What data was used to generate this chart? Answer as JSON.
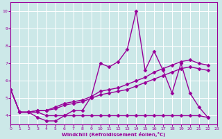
{
  "xlabel": "Windchill (Refroidissement éolien,°C)",
  "xlim": [
    0,
    23
  ],
  "ylim": [
    3.5,
    10.5
  ],
  "yticks": [
    4,
    5,
    6,
    7,
    8,
    9,
    10
  ],
  "xticks": [
    0,
    1,
    2,
    3,
    4,
    5,
    6,
    7,
    8,
    9,
    10,
    11,
    12,
    13,
    14,
    15,
    16,
    17,
    18,
    19,
    20,
    21,
    22,
    23
  ],
  "background_color": "#cce8e8",
  "grid_color": "#b0d0d0",
  "line_color": "#990099",
  "line_width": 1.0,
  "marker": "D",
  "marker_size": 2.5,
  "series_x": [
    0,
    1,
    2,
    3,
    4,
    5,
    6,
    7,
    8,
    9,
    10,
    11,
    12,
    13,
    14,
    15,
    16,
    17,
    18,
    19,
    20,
    21,
    22
  ],
  "series": [
    [
      5.5,
      4.2,
      4.2,
      3.9,
      3.7,
      3.7,
      4.0,
      4.3,
      4.3,
      5.1,
      7.0,
      6.8,
      7.1,
      7.8,
      10.0,
      6.6,
      7.7,
      6.6,
      5.3,
      7.0,
      5.3,
      4.5,
      3.9
    ],
    [
      5.5,
      4.2,
      4.2,
      4.2,
      4.0,
      4.0,
      4.0,
      4.0,
      4.0,
      4.0,
      4.0,
      4.0,
      4.0,
      4.0,
      4.0,
      4.0,
      4.0,
      4.0,
      4.0,
      4.0,
      4.0,
      4.0,
      3.9
    ],
    [
      5.5,
      4.2,
      4.2,
      4.3,
      4.3,
      4.4,
      4.6,
      4.7,
      4.8,
      5.0,
      5.2,
      5.3,
      5.4,
      5.5,
      5.7,
      5.9,
      6.1,
      6.3,
      6.5,
      6.7,
      6.8,
      6.7,
      6.6
    ],
    [
      5.5,
      4.2,
      4.2,
      4.3,
      4.3,
      4.5,
      4.7,
      4.8,
      4.9,
      5.1,
      5.4,
      5.5,
      5.6,
      5.8,
      6.0,
      6.2,
      6.5,
      6.7,
      6.9,
      7.1,
      7.2,
      7.0,
      6.9
    ]
  ]
}
